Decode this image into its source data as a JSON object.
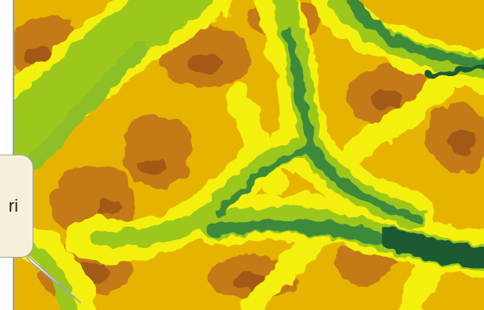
{
  "map": {
    "style": "elevation-raster",
    "colors": {
      "low": "#1f5a32",
      "valley": "#3c8a3a",
      "lowland": "#9cc81e",
      "mid": "#f4f00a",
      "upland": "#e6b400",
      "high": "#c47a12",
      "peak": "#a35a14"
    }
  },
  "callout": {
    "text": "ri",
    "fill": "#f5f0d8",
    "border": "#9aa8b5"
  }
}
